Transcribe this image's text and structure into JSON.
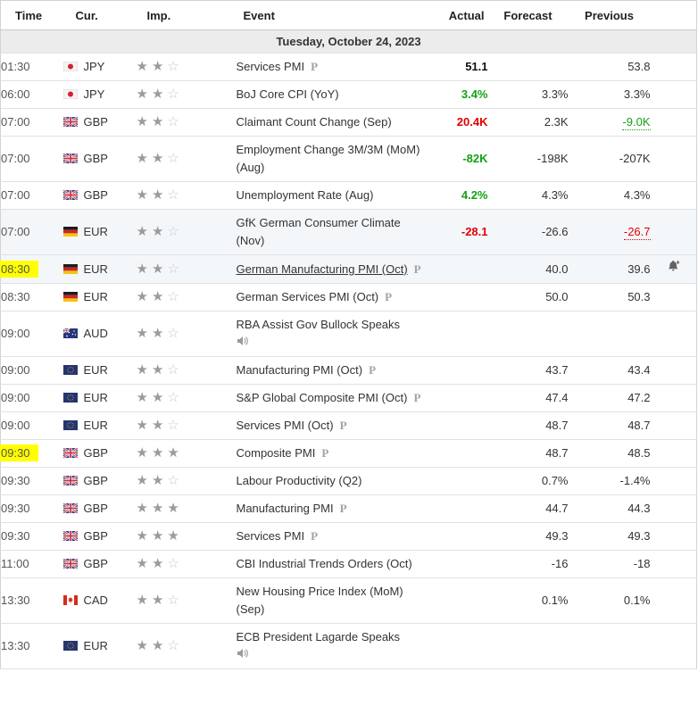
{
  "table": {
    "columns": [
      "Time",
      "Cur.",
      "Imp.",
      "Event",
      "Actual",
      "Forecast",
      "Previous",
      ""
    ],
    "date_header": "Tuesday, October 24, 2023",
    "rows": [
      {
        "time": "01:30",
        "highlight": false,
        "flag": "japan",
        "currency": "JPY",
        "importance": 2,
        "event": "Services PMI",
        "underlined": false,
        "preliminary": true,
        "speech": false,
        "actual": {
          "text": "51.1",
          "color": "neutral"
        },
        "forecast": "",
        "previous": {
          "text": "53.8",
          "color": "neutral",
          "dotted": false
        },
        "alert": false,
        "shaded": false
      },
      {
        "time": "06:00",
        "highlight": false,
        "flag": "japan",
        "currency": "JPY",
        "importance": 2,
        "event": "BoJ Core CPI (YoY)",
        "underlined": false,
        "preliminary": false,
        "speech": false,
        "actual": {
          "text": "3.4%",
          "color": "green"
        },
        "forecast": "3.3%",
        "previous": {
          "text": "3.3%",
          "color": "neutral",
          "dotted": false
        },
        "alert": false,
        "shaded": false
      },
      {
        "time": "07:00",
        "highlight": false,
        "flag": "uk",
        "currency": "GBP",
        "importance": 2,
        "event": "Claimant Count Change (Sep)",
        "underlined": false,
        "preliminary": false,
        "speech": false,
        "actual": {
          "text": "20.4K",
          "color": "red"
        },
        "forecast": "2.3K",
        "previous": {
          "text": "-9.0K",
          "color": "green",
          "dotted": true
        },
        "alert": false,
        "shaded": false
      },
      {
        "time": "07:00",
        "highlight": false,
        "flag": "uk",
        "currency": "GBP",
        "importance": 2,
        "event": "Employment Change 3M/3M (MoM) (Aug)",
        "underlined": false,
        "preliminary": false,
        "speech": false,
        "actual": {
          "text": "-82K",
          "color": "green"
        },
        "forecast": "-198K",
        "previous": {
          "text": "-207K",
          "color": "neutral",
          "dotted": false
        },
        "alert": false,
        "shaded": false
      },
      {
        "time": "07:00",
        "highlight": false,
        "flag": "uk",
        "currency": "GBP",
        "importance": 2,
        "event": "Unemployment Rate (Aug)",
        "underlined": false,
        "preliminary": false,
        "speech": false,
        "actual": {
          "text": "4.2%",
          "color": "green"
        },
        "forecast": "4.3%",
        "previous": {
          "text": "4.3%",
          "color": "neutral",
          "dotted": false
        },
        "alert": false,
        "shaded": false
      },
      {
        "time": "07:00",
        "highlight": false,
        "flag": "germany",
        "currency": "EUR",
        "importance": 2,
        "event": "GfK German Consumer Climate (Nov)",
        "underlined": false,
        "preliminary": false,
        "speech": false,
        "actual": {
          "text": "-28.1",
          "color": "red"
        },
        "forecast": "-26.6",
        "previous": {
          "text": "-26.7",
          "color": "red",
          "dotted": true
        },
        "alert": false,
        "shaded": true
      },
      {
        "time": "08:30",
        "highlight": true,
        "flag": "germany",
        "currency": "EUR",
        "importance": 2,
        "event": "German Manufacturing PMI (Oct)",
        "underlined": true,
        "preliminary": true,
        "speech": false,
        "actual": {
          "text": "",
          "color": "neutral"
        },
        "forecast": "40.0",
        "previous": {
          "text": "39.6",
          "color": "neutral",
          "dotted": false
        },
        "alert": true,
        "shaded": true
      },
      {
        "time": "08:30",
        "highlight": false,
        "flag": "germany",
        "currency": "EUR",
        "importance": 2,
        "event": "German Services PMI (Oct)",
        "underlined": false,
        "preliminary": true,
        "speech": false,
        "actual": {
          "text": "",
          "color": "neutral"
        },
        "forecast": "50.0",
        "previous": {
          "text": "50.3",
          "color": "neutral",
          "dotted": false
        },
        "alert": false,
        "shaded": false
      },
      {
        "time": "09:00",
        "highlight": false,
        "flag": "australia",
        "currency": "AUD",
        "importance": 2,
        "event": "RBA Assist Gov Bullock Speaks",
        "underlined": false,
        "preliminary": false,
        "speech": true,
        "actual": {
          "text": "",
          "color": "neutral"
        },
        "forecast": "",
        "previous": {
          "text": "",
          "color": "neutral",
          "dotted": false
        },
        "alert": false,
        "shaded": false
      },
      {
        "time": "09:00",
        "highlight": false,
        "flag": "eu",
        "currency": "EUR",
        "importance": 2,
        "event": "Manufacturing PMI (Oct)",
        "underlined": false,
        "preliminary": true,
        "speech": false,
        "actual": {
          "text": "",
          "color": "neutral"
        },
        "forecast": "43.7",
        "previous": {
          "text": "43.4",
          "color": "neutral",
          "dotted": false
        },
        "alert": false,
        "shaded": false
      },
      {
        "time": "09:00",
        "highlight": false,
        "flag": "eu",
        "currency": "EUR",
        "importance": 2,
        "event": "S&P Global Composite PMI (Oct)",
        "underlined": false,
        "preliminary": true,
        "speech": false,
        "actual": {
          "text": "",
          "color": "neutral"
        },
        "forecast": "47.4",
        "previous": {
          "text": "47.2",
          "color": "neutral",
          "dotted": false
        },
        "alert": false,
        "shaded": false
      },
      {
        "time": "09:00",
        "highlight": false,
        "flag": "eu",
        "currency": "EUR",
        "importance": 2,
        "event": "Services PMI (Oct)",
        "underlined": false,
        "preliminary": true,
        "speech": false,
        "actual": {
          "text": "",
          "color": "neutral"
        },
        "forecast": "48.7",
        "previous": {
          "text": "48.7",
          "color": "neutral",
          "dotted": false
        },
        "alert": false,
        "shaded": false
      },
      {
        "time": "09:30",
        "highlight": true,
        "flag": "uk",
        "currency": "GBP",
        "importance": 3,
        "event": "Composite PMI",
        "underlined": false,
        "preliminary": true,
        "speech": false,
        "actual": {
          "text": "",
          "color": "neutral"
        },
        "forecast": "48.7",
        "previous": {
          "text": "48.5",
          "color": "neutral",
          "dotted": false
        },
        "alert": false,
        "shaded": false
      },
      {
        "time": "09:30",
        "highlight": false,
        "flag": "uk",
        "currency": "GBP",
        "importance": 2,
        "event": "Labour Productivity (Q2)",
        "underlined": false,
        "preliminary": false,
        "speech": false,
        "actual": {
          "text": "",
          "color": "neutral"
        },
        "forecast": "0.7%",
        "previous": {
          "text": "-1.4%",
          "color": "neutral",
          "dotted": false
        },
        "alert": false,
        "shaded": false
      },
      {
        "time": "09:30",
        "highlight": false,
        "flag": "uk",
        "currency": "GBP",
        "importance": 3,
        "event": "Manufacturing PMI",
        "underlined": false,
        "preliminary": true,
        "speech": false,
        "actual": {
          "text": "",
          "color": "neutral"
        },
        "forecast": "44.7",
        "previous": {
          "text": "44.3",
          "color": "neutral",
          "dotted": false
        },
        "alert": false,
        "shaded": false
      },
      {
        "time": "09:30",
        "highlight": false,
        "flag": "uk",
        "currency": "GBP",
        "importance": 3,
        "event": "Services PMI",
        "underlined": false,
        "preliminary": true,
        "speech": false,
        "actual": {
          "text": "",
          "color": "neutral"
        },
        "forecast": "49.3",
        "previous": {
          "text": "49.3",
          "color": "neutral",
          "dotted": false
        },
        "alert": false,
        "shaded": false
      },
      {
        "time": "11:00",
        "highlight": false,
        "flag": "uk",
        "currency": "GBP",
        "importance": 2,
        "event": "CBI Industrial Trends Orders (Oct)",
        "underlined": false,
        "preliminary": false,
        "speech": false,
        "actual": {
          "text": "",
          "color": "neutral"
        },
        "forecast": "-16",
        "previous": {
          "text": "-18",
          "color": "neutral",
          "dotted": false
        },
        "alert": false,
        "shaded": false
      },
      {
        "time": "13:30",
        "highlight": false,
        "flag": "canada",
        "currency": "CAD",
        "importance": 2,
        "event": "New Housing Price Index (MoM) (Sep)",
        "underlined": false,
        "preliminary": false,
        "speech": false,
        "actual": {
          "text": "",
          "color": "neutral"
        },
        "forecast": "0.1%",
        "previous": {
          "text": "0.1%",
          "color": "neutral",
          "dotted": false
        },
        "alert": false,
        "shaded": false
      },
      {
        "time": "13:30",
        "highlight": false,
        "flag": "eu",
        "currency": "EUR",
        "importance": 2,
        "event": "ECB President Lagarde Speaks",
        "underlined": false,
        "preliminary": false,
        "speech": true,
        "actual": {
          "text": "",
          "color": "neutral"
        },
        "forecast": "",
        "previous": {
          "text": "",
          "color": "neutral",
          "dotted": false
        },
        "alert": false,
        "shaded": false
      }
    ]
  },
  "icons": {
    "preliminary_glyph": "P",
    "star_filled": "★",
    "star_empty": "☆",
    "speaker": "speaker-icon",
    "bell_add": "bell-plus-icon"
  },
  "colors": {
    "positive_green": "#13a113",
    "negative_red": "#e10000",
    "time_highlight": "#ffff00",
    "shaded_row": "#f4f7fa",
    "date_row_bg": "#ececec"
  }
}
